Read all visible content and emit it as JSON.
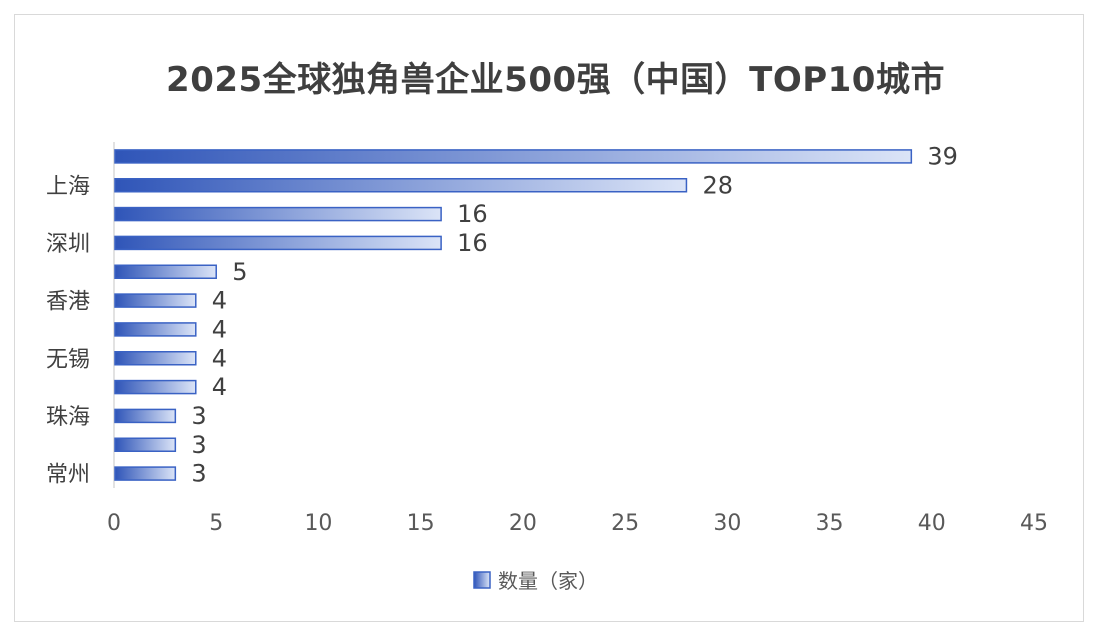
{
  "chart_data": {
    "type": "bar",
    "orientation": "horizontal",
    "title": "2025全球独角兽企业500强（中国）TOP10城市",
    "categories": [
      "",
      "上海",
      "",
      "深圳",
      "",
      "香港",
      "",
      "无锡",
      "",
      "珠海",
      "",
      "常州"
    ],
    "series": [
      {
        "name": "数量（家）",
        "values": [
          39,
          28,
          16,
          16,
          5,
          4,
          4,
          4,
          4,
          3,
          3,
          3
        ]
      }
    ],
    "xlim": [
      0,
      45
    ],
    "xticks": [
      0,
      5,
      10,
      15,
      20,
      25,
      30,
      35,
      40,
      45
    ],
    "grid": false,
    "legend": "bottom",
    "colors": {
      "bar_dark": "#2f55b8",
      "bar_light": "#dbe4f7",
      "bar_edge": "#3a62c4"
    }
  }
}
